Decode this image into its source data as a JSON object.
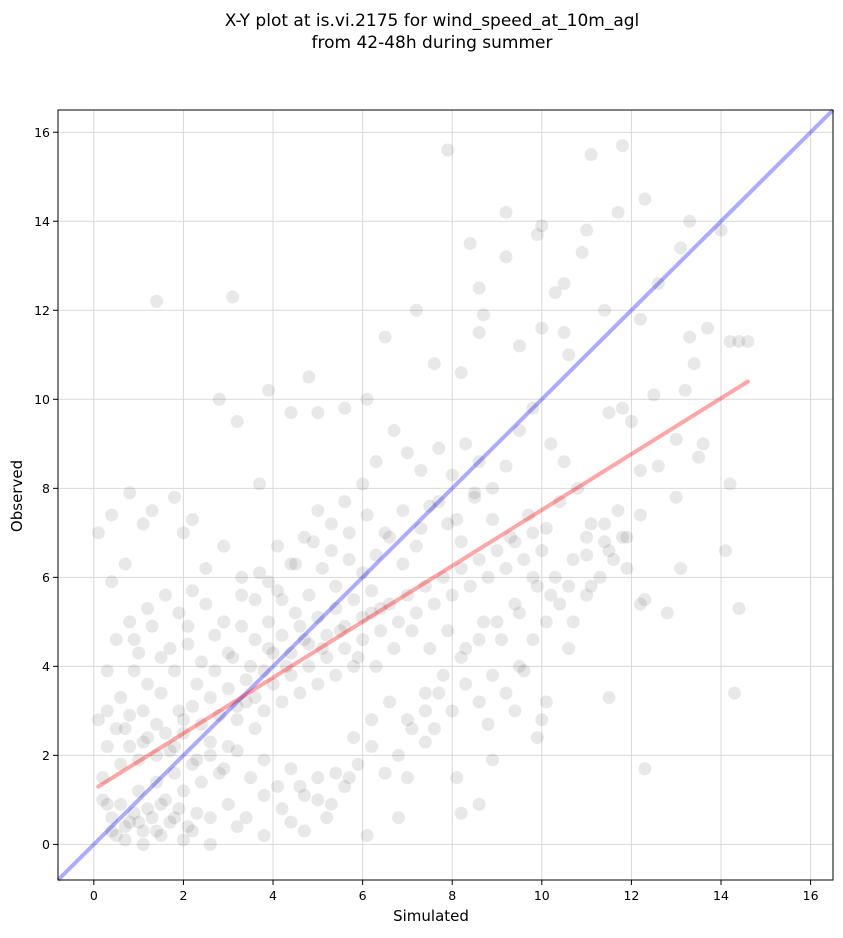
{
  "chart_data": {
    "type": "scatter",
    "title": "X-Y plot at is.vi.2175 for wind_speed_at_10m_agl",
    "subtitle": "from 42-48h during summer",
    "xlabel": "Simulated",
    "ylabel": "Observed",
    "xlim": [
      -0.8,
      16.5
    ],
    "ylim": [
      -0.8,
      16.5
    ],
    "xticks": [
      "0",
      "2",
      "4",
      "6",
      "8",
      "10",
      "12",
      "14",
      "16"
    ],
    "yticks": [
      "0",
      "2",
      "4",
      "6",
      "8",
      "10",
      "12",
      "14",
      "16"
    ],
    "grid": true,
    "point_color": "#000000",
    "point_alpha": 0.09,
    "reference_line": {
      "name": "1:1",
      "color": "#0000ff",
      "x": [
        -0.8,
        16.5
      ],
      "y": [
        -0.8,
        16.5
      ]
    },
    "fit_line": {
      "name": "regression",
      "color": "#ff0000",
      "x": [
        0.1,
        14.6
      ],
      "y": [
        1.3,
        10.4
      ]
    },
    "points": [
      [
        0.1,
        7.0
      ],
      [
        0.4,
        7.4
      ],
      [
        0.4,
        5.9
      ],
      [
        0.8,
        7.9
      ],
      [
        1.1,
        7.2
      ],
      [
        1.4,
        12.2
      ],
      [
        0.7,
        6.3
      ],
      [
        1.3,
        7.5
      ],
      [
        1.8,
        7.8
      ],
      [
        2.0,
        7.0
      ],
      [
        2.2,
        7.3
      ],
      [
        2.8,
        10.0
      ],
      [
        3.1,
        12.3
      ],
      [
        3.2,
        9.5
      ],
      [
        3.7,
        8.1
      ],
      [
        3.9,
        10.2
      ],
      [
        4.4,
        9.7
      ],
      [
        4.8,
        10.5
      ],
      [
        5.0,
        9.7
      ],
      [
        5.6,
        9.8
      ],
      [
        6.1,
        10.0
      ],
      [
        6.5,
        11.4
      ],
      [
        7.2,
        12.0
      ],
      [
        7.6,
        10.8
      ],
      [
        7.9,
        15.6
      ],
      [
        8.2,
        10.6
      ],
      [
        8.4,
        13.5
      ],
      [
        8.6,
        12.5
      ],
      [
        8.6,
        11.5
      ],
      [
        8.7,
        11.9
      ],
      [
        9.2,
        14.2
      ],
      [
        9.2,
        13.2
      ],
      [
        9.5,
        11.2
      ],
      [
        9.9,
        13.7
      ],
      [
        10.0,
        13.9
      ],
      [
        10.0,
        11.6
      ],
      [
        10.3,
        12.4
      ],
      [
        10.5,
        12.6
      ],
      [
        10.5,
        11.5
      ],
      [
        10.6,
        11.0
      ],
      [
        10.9,
        13.3
      ],
      [
        11.0,
        13.8
      ],
      [
        11.1,
        15.5
      ],
      [
        11.4,
        12.0
      ],
      [
        11.8,
        15.7
      ],
      [
        11.7,
        14.2
      ],
      [
        12.2,
        11.8
      ],
      [
        12.3,
        14.5
      ],
      [
        12.6,
        12.6
      ],
      [
        13.1,
        13.4
      ],
      [
        13.3,
        14.0
      ],
      [
        13.3,
        11.4
      ],
      [
        13.7,
        11.6
      ],
      [
        14.0,
        13.8
      ],
      [
        14.2,
        11.3
      ],
      [
        14.4,
        11.3
      ],
      [
        14.6,
        11.3
      ],
      [
        13.4,
        10.8
      ],
      [
        13.2,
        10.2
      ],
      [
        12.0,
        9.5
      ],
      [
        11.8,
        9.8
      ],
      [
        11.5,
        9.7
      ],
      [
        12.5,
        10.1
      ],
      [
        13.0,
        9.1
      ],
      [
        13.5,
        8.7
      ],
      [
        13.6,
        9.0
      ],
      [
        13.0,
        7.8
      ],
      [
        13.1,
        6.2
      ],
      [
        12.8,
        5.2
      ],
      [
        14.1,
        6.6
      ],
      [
        14.2,
        8.1
      ],
      [
        14.4,
        5.3
      ],
      [
        14.3,
        3.4
      ],
      [
        12.3,
        1.7
      ],
      [
        11.5,
        3.3
      ],
      [
        12.3,
        5.5
      ],
      [
        12.2,
        5.4
      ],
      [
        11.0,
        6.5
      ],
      [
        10.6,
        4.4
      ],
      [
        10.1,
        3.2
      ],
      [
        10.0,
        2.8
      ],
      [
        9.9,
        2.4
      ],
      [
        9.6,
        3.9
      ],
      [
        9.4,
        3.0
      ],
      [
        8.8,
        2.7
      ],
      [
        8.9,
        1.9
      ],
      [
        8.6,
        0.9
      ],
      [
        8.2,
        0.7
      ],
      [
        8.1,
        1.5
      ],
      [
        7.6,
        2.6
      ],
      [
        7.4,
        2.3
      ],
      [
        7.0,
        1.5
      ],
      [
        6.8,
        0.6
      ],
      [
        6.1,
        0.2
      ],
      [
        5.7,
        1.5
      ],
      [
        5.2,
        0.6
      ],
      [
        4.7,
        0.3
      ],
      [
        4.4,
        0.5
      ],
      [
        3.8,
        0.2
      ],
      [
        3.2,
        0.4
      ],
      [
        2.6,
        0.0
      ],
      [
        2.0,
        0.1
      ],
      [
        1.5,
        0.2
      ],
      [
        1.1,
        0.0
      ],
      [
        0.7,
        0.1
      ],
      [
        0.4,
        0.3
      ],
      [
        0.3,
        0.9
      ],
      [
        0.2,
        1.5
      ],
      [
        0.1,
        2.8
      ],
      [
        0.3,
        3.9
      ],
      [
        0.5,
        4.6
      ],
      [
        0.8,
        5.0
      ],
      [
        1.0,
        4.3
      ],
      [
        1.2,
        5.3
      ],
      [
        1.6,
        5.6
      ],
      [
        1.9,
        5.2
      ],
      [
        2.2,
        5.7
      ],
      [
        2.5,
        6.2
      ],
      [
        2.9,
        6.7
      ],
      [
        3.3,
        6.0
      ],
      [
        3.6,
        5.5
      ],
      [
        3.9,
        5.9
      ],
      [
        4.1,
        6.7
      ],
      [
        4.4,
        6.3
      ],
      [
        4.7,
        6.9
      ],
      [
        5.0,
        7.5
      ],
      [
        5.3,
        7.2
      ],
      [
        5.6,
        7.7
      ],
      [
        6.0,
        8.1
      ],
      [
        6.3,
        8.6
      ],
      [
        6.7,
        9.3
      ],
      [
        7.0,
        8.8
      ],
      [
        7.3,
        8.4
      ],
      [
        7.7,
        8.9
      ],
      [
        8.0,
        8.3
      ],
      [
        8.3,
        9.0
      ],
      [
        8.6,
        8.6
      ],
      [
        8.9,
        8.0
      ],
      [
        9.2,
        8.5
      ],
      [
        9.5,
        9.3
      ],
      [
        9.8,
        9.8
      ],
      [
        10.2,
        9.0
      ],
      [
        10.5,
        8.6
      ],
      [
        10.8,
        8.0
      ],
      [
        11.1,
        7.2
      ],
      [
        11.4,
        6.8
      ],
      [
        11.7,
        7.5
      ],
      [
        10.4,
        7.7
      ],
      [
        10.1,
        7.1
      ],
      [
        9.7,
        7.4
      ],
      [
        9.3,
        6.9
      ],
      [
        8.9,
        7.3
      ],
      [
        8.5,
        7.8
      ],
      [
        8.2,
        6.8
      ],
      [
        7.9,
        7.2
      ],
      [
        7.5,
        7.6
      ],
      [
        7.2,
        6.7
      ],
      [
        6.9,
        6.3
      ],
      [
        6.6,
        6.9
      ],
      [
        6.3,
        6.5
      ],
      [
        6.0,
        6.1
      ],
      [
        5.7,
        6.4
      ],
      [
        5.4,
        5.8
      ],
      [
        5.1,
        6.2
      ],
      [
        4.8,
        5.6
      ],
      [
        4.5,
        5.2
      ],
      [
        4.2,
        5.5
      ],
      [
        3.9,
        5.0
      ],
      [
        3.6,
        4.6
      ],
      [
        3.3,
        4.9
      ],
      [
        3.0,
        4.3
      ],
      [
        2.7,
        4.7
      ],
      [
        2.4,
        4.1
      ],
      [
        2.1,
        4.5
      ],
      [
        1.8,
        3.9
      ],
      [
        1.5,
        4.2
      ],
      [
        1.2,
        3.6
      ],
      [
        0.9,
        3.9
      ],
      [
        0.6,
        3.3
      ],
      [
        0.3,
        3.0
      ],
      [
        0.5,
        2.6
      ],
      [
        0.8,
        2.9
      ],
      [
        1.1,
        2.3
      ],
      [
        1.4,
        2.7
      ],
      [
        1.7,
        2.1
      ],
      [
        2.0,
        2.5
      ],
      [
        2.3,
        1.9
      ],
      [
        2.6,
        2.3
      ],
      [
        2.9,
        1.7
      ],
      [
        3.2,
        2.1
      ],
      [
        3.5,
        1.5
      ],
      [
        3.8,
        1.9
      ],
      [
        4.1,
        1.3
      ],
      [
        4.4,
        1.7
      ],
      [
        4.7,
        1.1
      ],
      [
        5.0,
        1.5
      ],
      [
        5.3,
        0.9
      ],
      [
        5.6,
        1.3
      ],
      [
        5.9,
        1.8
      ],
      [
        6.2,
        2.2
      ],
      [
        6.5,
        1.6
      ],
      [
        6.8,
        2.0
      ],
      [
        7.1,
        2.6
      ],
      [
        7.4,
        3.0
      ],
      [
        7.7,
        3.4
      ],
      [
        8.0,
        3.0
      ],
      [
        8.3,
        3.6
      ],
      [
        8.6,
        3.2
      ],
      [
        8.9,
        3.8
      ],
      [
        9.2,
        3.4
      ],
      [
        9.5,
        4.0
      ],
      [
        9.8,
        4.6
      ],
      [
        10.1,
        5.0
      ],
      [
        10.4,
        5.4
      ],
      [
        10.7,
        5.0
      ],
      [
        11.0,
        5.6
      ],
      [
        11.3,
        6.0
      ],
      [
        11.6,
        6.4
      ],
      [
        11.9,
        6.9
      ],
      [
        12.2,
        7.4
      ],
      [
        0.2,
        1.0
      ],
      [
        0.4,
        0.6
      ],
      [
        0.6,
        0.9
      ],
      [
        0.8,
        0.5
      ],
      [
        1.0,
        1.2
      ],
      [
        1.2,
        0.8
      ],
      [
        1.4,
        1.4
      ],
      [
        1.6,
        1.0
      ],
      [
        1.8,
        1.6
      ],
      [
        2.0,
        1.2
      ],
      [
        2.2,
        1.8
      ],
      [
        2.4,
        1.4
      ],
      [
        2.6,
        2.0
      ],
      [
        2.8,
        1.6
      ],
      [
        3.0,
        2.2
      ],
      [
        3.2,
        2.8
      ],
      [
        3.4,
        3.2
      ],
      [
        3.6,
        2.6
      ],
      [
        3.8,
        3.0
      ],
      [
        4.0,
        3.6
      ],
      [
        4.2,
        3.2
      ],
      [
        4.4,
        3.8
      ],
      [
        4.6,
        3.4
      ],
      [
        4.8,
        4.0
      ],
      [
        5.0,
        3.6
      ],
      [
        5.2,
        4.2
      ],
      [
        5.4,
        3.8
      ],
      [
        5.6,
        4.4
      ],
      [
        5.8,
        4.0
      ],
      [
        6.0,
        4.6
      ],
      [
        6.2,
        5.2
      ],
      [
        6.4,
        4.8
      ],
      [
        6.6,
        5.4
      ],
      [
        6.8,
        5.0
      ],
      [
        7.0,
        5.6
      ],
      [
        7.2,
        5.2
      ],
      [
        7.4,
        5.8
      ],
      [
        7.6,
        5.4
      ],
      [
        7.8,
        6.0
      ],
      [
        8.0,
        5.6
      ],
      [
        8.2,
        6.2
      ],
      [
        8.4,
        5.8
      ],
      [
        8.6,
        6.4
      ],
      [
        8.8,
        6.0
      ],
      [
        9.0,
        6.6
      ],
      [
        9.2,
        6.2
      ],
      [
        9.4,
        6.8
      ],
      [
        9.6,
        6.4
      ],
      [
        9.8,
        7.0
      ],
      [
        10.0,
        6.6
      ],
      [
        0.5,
        0.2
      ],
      [
        0.7,
        0.4
      ],
      [
        0.9,
        0.7
      ],
      [
        1.1,
        0.3
      ],
      [
        1.3,
        0.6
      ],
      [
        1.5,
        0.9
      ],
      [
        1.7,
        0.5
      ],
      [
        1.9,
        0.8
      ],
      [
        2.1,
        0.4
      ],
      [
        2.3,
        0.7
      ],
      [
        0.6,
        1.8
      ],
      [
        0.8,
        2.2
      ],
      [
        1.0,
        1.9
      ],
      [
        1.2,
        2.4
      ],
      [
        1.4,
        2.0
      ],
      [
        1.6,
        2.5
      ],
      [
        1.8,
        2.2
      ],
      [
        2.0,
        2.8
      ],
      [
        2.2,
        3.1
      ],
      [
        2.4,
        2.7
      ],
      [
        2.6,
        3.3
      ],
      [
        2.8,
        2.9
      ],
      [
        3.0,
        3.5
      ],
      [
        3.2,
        3.1
      ],
      [
        3.4,
        3.7
      ],
      [
        3.6,
        3.3
      ],
      [
        3.8,
        3.9
      ],
      [
        4.0,
        4.3
      ],
      [
        4.2,
        4.7
      ],
      [
        4.4,
        4.3
      ],
      [
        4.6,
        4.9
      ],
      [
        4.8,
        4.5
      ],
      [
        5.0,
        5.1
      ],
      [
        5.2,
        4.7
      ],
      [
        5.4,
        5.3
      ],
      [
        5.6,
        4.9
      ],
      [
        5.8,
        5.5
      ],
      [
        6.0,
        5.1
      ],
      [
        6.2,
        5.7
      ],
      [
        6.4,
        5.3
      ],
      [
        0.9,
        4.6
      ],
      [
        1.3,
        4.9
      ],
      [
        1.7,
        4.4
      ],
      [
        2.1,
        4.9
      ],
      [
        2.5,
        5.4
      ],
      [
        2.9,
        5.0
      ],
      [
        3.3,
        5.6
      ],
      [
        3.7,
        6.1
      ],
      [
        4.1,
        5.7
      ],
      [
        4.5,
        6.3
      ],
      [
        4.9,
        6.8
      ],
      [
        5.3,
        6.6
      ],
      [
        5.7,
        7.0
      ],
      [
        6.1,
        7.4
      ],
      [
        6.5,
        7.0
      ],
      [
        6.9,
        7.5
      ],
      [
        7.3,
        7.1
      ],
      [
        7.7,
        7.7
      ],
      [
        8.1,
        7.3
      ],
      [
        8.5,
        7.9
      ],
      [
        0.3,
        2.2
      ],
      [
        0.7,
        2.6
      ],
      [
        1.1,
        3.0
      ],
      [
        1.5,
        3.4
      ],
      [
        1.9,
        3.0
      ],
      [
        2.3,
        3.6
      ],
      [
        2.7,
        3.9
      ],
      [
        3.1,
        4.2
      ],
      [
        3.5,
        4.0
      ],
      [
        3.9,
        4.4
      ],
      [
        4.3,
        4.0
      ],
      [
        4.7,
        4.6
      ],
      [
        5.1,
        4.4
      ],
      [
        5.5,
        4.8
      ],
      [
        5.9,
        4.2
      ],
      [
        6.3,
        4.0
      ],
      [
        6.7,
        4.4
      ],
      [
        7.1,
        4.8
      ],
      [
        7.5,
        4.4
      ],
      [
        7.9,
        4.8
      ],
      [
        8.3,
        4.4
      ],
      [
        8.7,
        5.0
      ],
      [
        9.1,
        4.6
      ],
      [
        9.5,
        5.2
      ],
      [
        9.9,
        5.8
      ],
      [
        10.3,
        6.0
      ],
      [
        10.7,
        6.4
      ],
      [
        11.1,
        5.8
      ],
      [
        11.5,
        6.6
      ],
      [
        11.9,
        6.2
      ],
      [
        1.0,
        0.5
      ],
      [
        1.4,
        0.3
      ],
      [
        1.8,
        0.6
      ],
      [
        2.2,
        0.3
      ],
      [
        2.6,
        0.6
      ],
      [
        3.0,
        0.9
      ],
      [
        3.4,
        0.6
      ],
      [
        3.8,
        1.1
      ],
      [
        4.2,
        0.8
      ],
      [
        4.6,
        1.3
      ],
      [
        5.0,
        1.0
      ],
      [
        5.4,
        1.6
      ],
      [
        5.8,
        2.4
      ],
      [
        6.2,
        2.8
      ],
      [
        6.6,
        3.2
      ],
      [
        7.0,
        2.8
      ],
      [
        7.4,
        3.4
      ],
      [
        7.8,
        3.8
      ],
      [
        8.2,
        4.2
      ],
      [
        8.6,
        4.6
      ],
      [
        9.0,
        5.0
      ],
      [
        9.4,
        5.4
      ],
      [
        9.8,
        6.0
      ],
      [
        10.2,
        5.6
      ],
      [
        10.6,
        5.8
      ],
      [
        11.0,
        6.9
      ],
      [
        11.4,
        7.2
      ],
      [
        11.8,
        6.9
      ],
      [
        12.2,
        8.4
      ],
      [
        12.6,
        8.5
      ]
    ]
  }
}
